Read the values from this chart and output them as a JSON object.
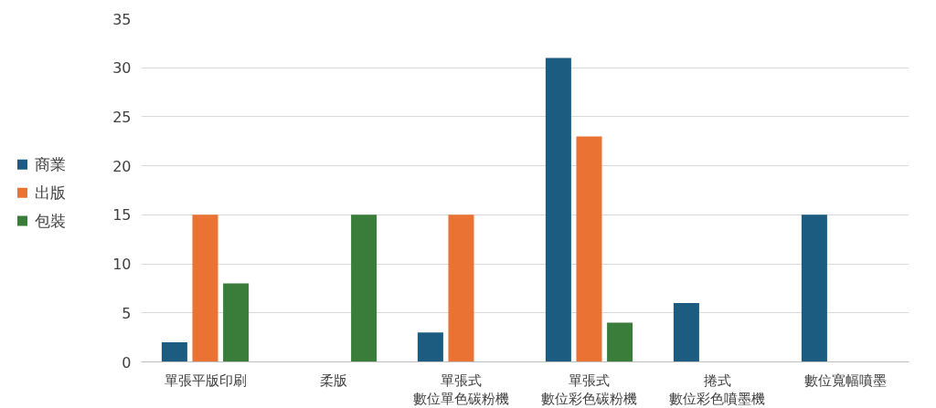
{
  "chart_data": {
    "type": "bar",
    "categories": [
      "單張平版印刷",
      "柔版",
      "單張式數位單色碳粉機",
      "單張式數位彩色碳粉機",
      "捲式數位彩色噴墨機",
      "數位寬幅噴墨"
    ],
    "series": [
      {
        "name": "商業",
        "color": "#1b5c80",
        "values": [
          2,
          null,
          3,
          31,
          6,
          15
        ]
      },
      {
        "name": "出版",
        "color": "#ea7333",
        "values": [
          15,
          null,
          15,
          23,
          null,
          null
        ]
      },
      {
        "name": "包裝",
        "color": "#3a7d3a",
        "values": [
          8,
          15,
          null,
          4,
          null,
          null
        ]
      }
    ],
    "ylim": [
      0,
      35
    ],
    "yticks": [
      0,
      5,
      10,
      15,
      20,
      25,
      30,
      35
    ],
    "grid": "y",
    "legend": "left"
  }
}
